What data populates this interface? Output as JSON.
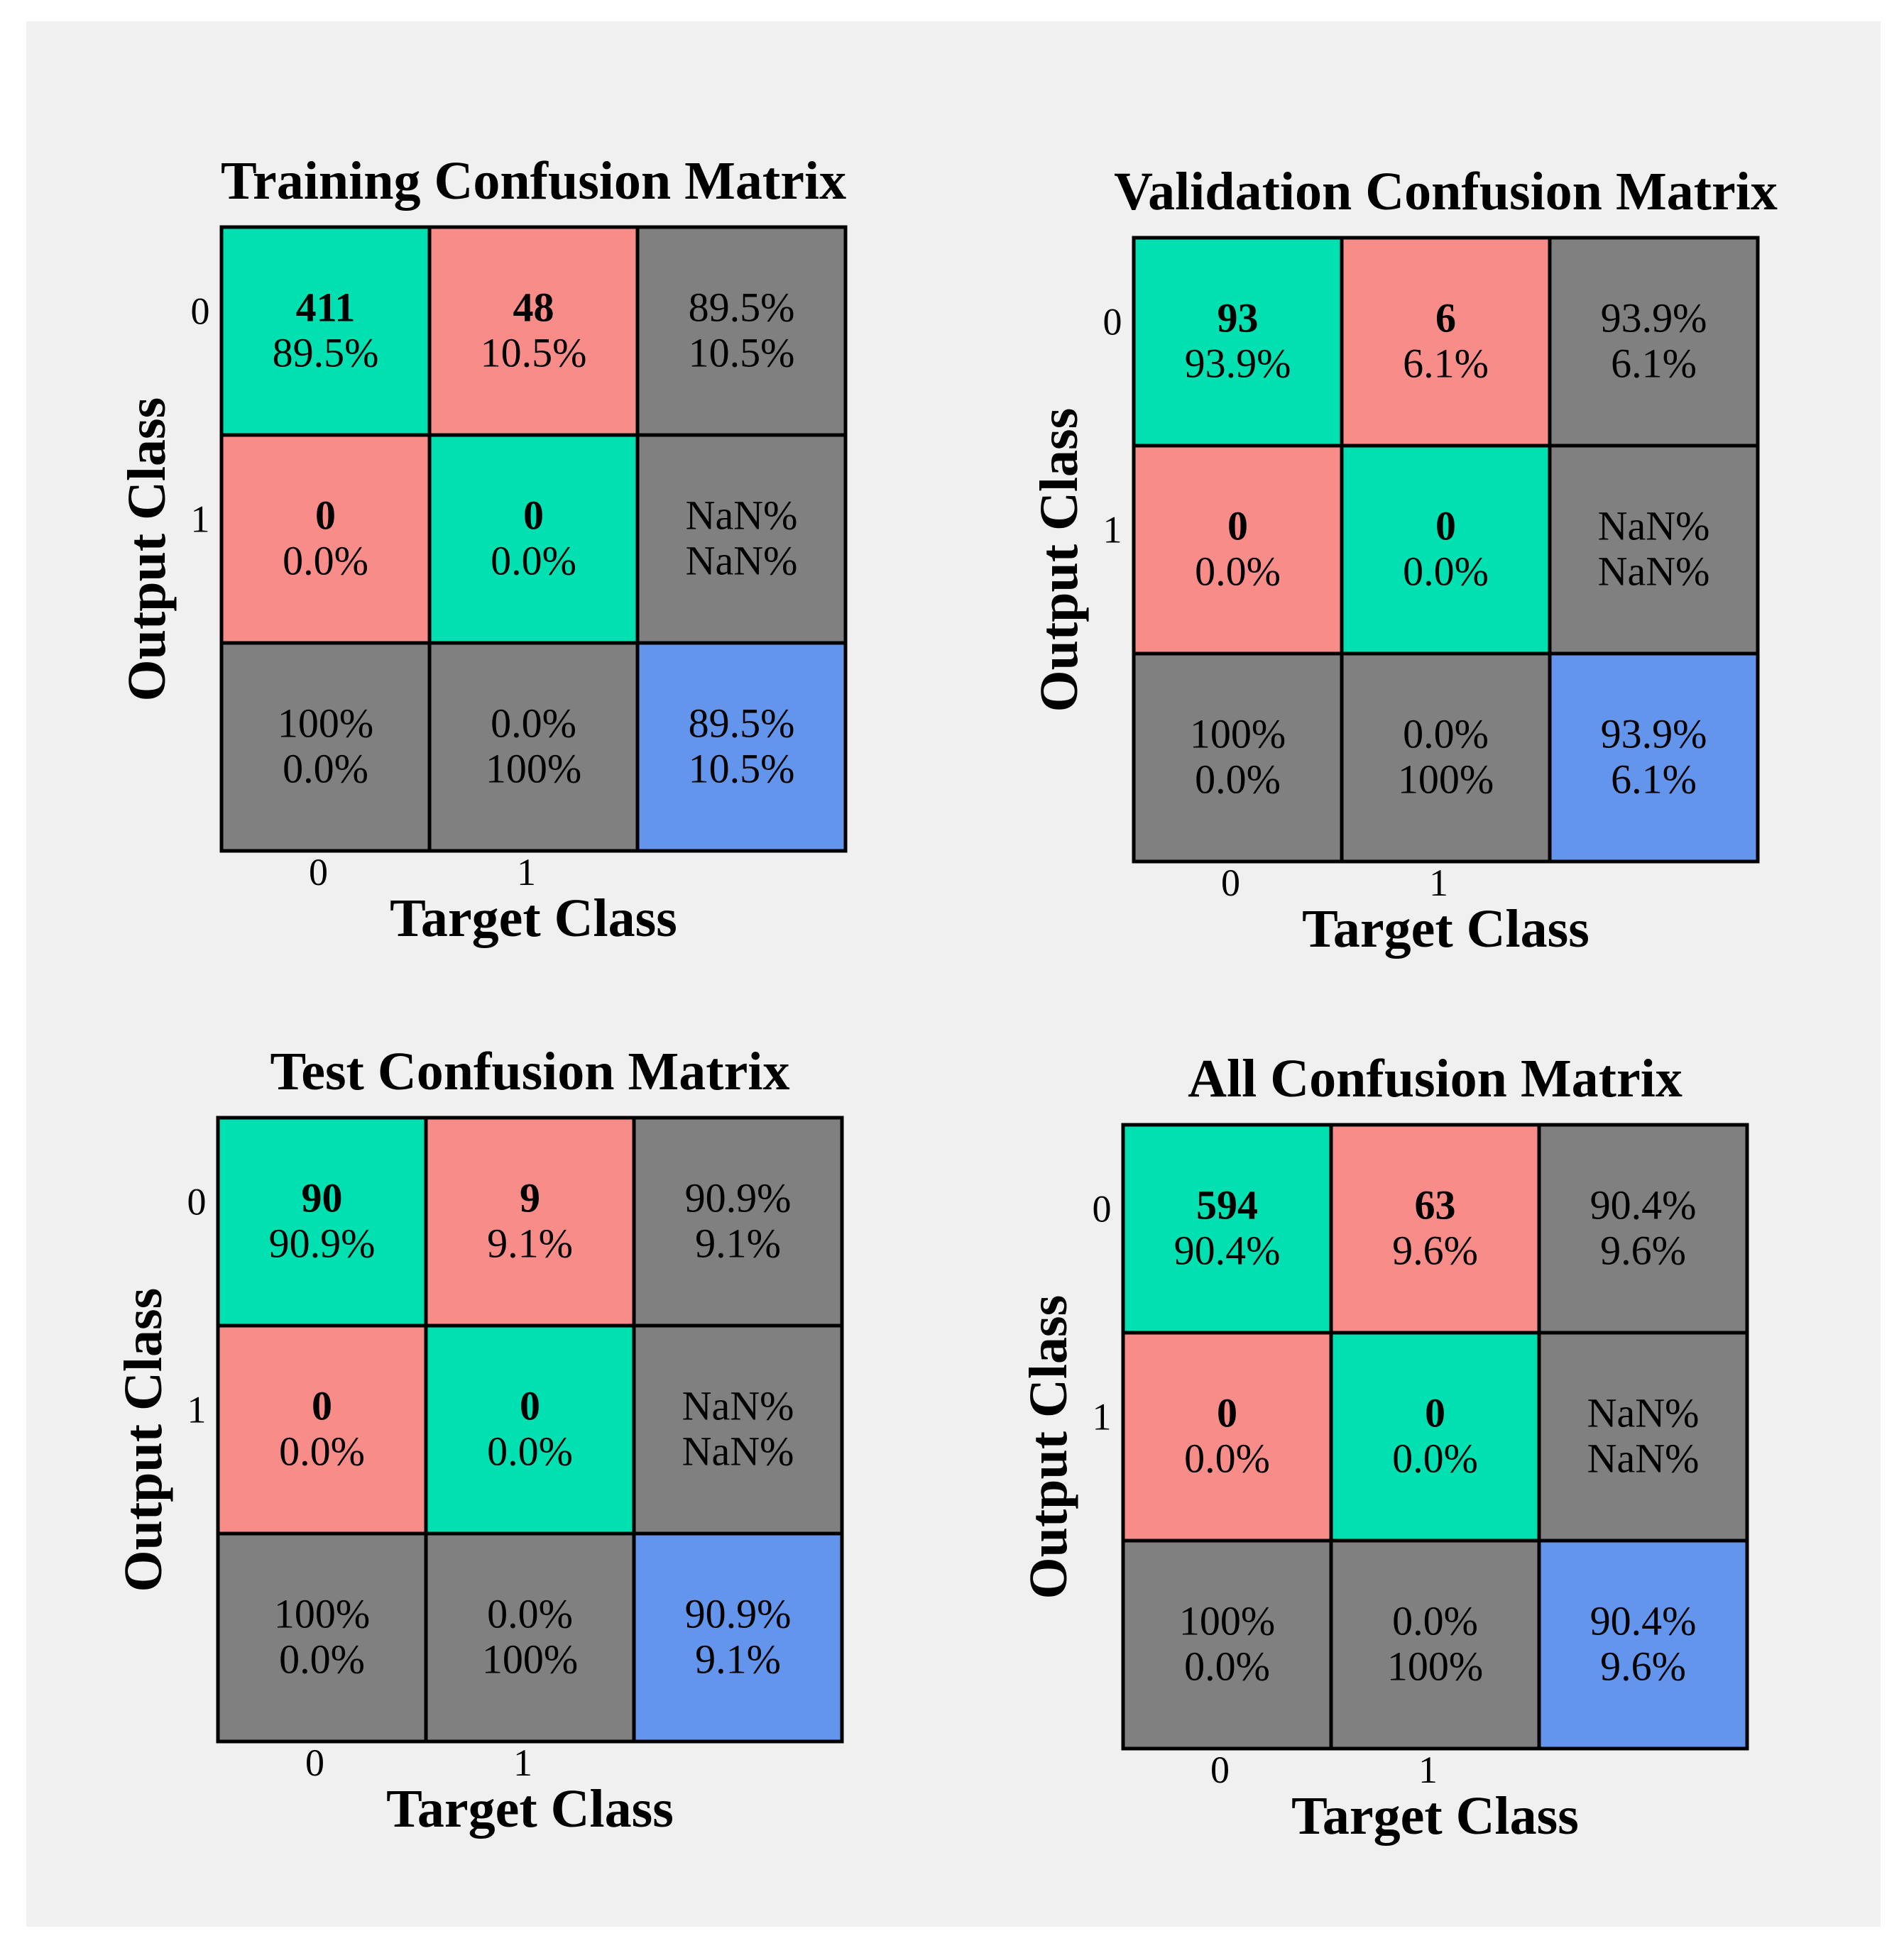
{
  "colors": {
    "correct": "#00E0B0",
    "incorrect": "#F88C88",
    "summary": "#808080",
    "overall": "#6495ED",
    "grid": "#000000",
    "background": "#f0f0f0"
  },
  "chart_data": [
    {
      "type": "table",
      "title": "Training Confusion Matrix",
      "xlabel": "Target Class",
      "ylabel": "Output Class",
      "x_ticks": [
        "0",
        "1"
      ],
      "y_ticks": [
        "0",
        "1"
      ],
      "cells": [
        [
          {
            "kind": "correct",
            "count": "411",
            "pct": "89.5%"
          },
          {
            "kind": "incorrect",
            "count": "48",
            "pct": "10.5%"
          },
          {
            "kind": "summary",
            "top": "89.5%",
            "bottom": "10.5%"
          }
        ],
        [
          {
            "kind": "incorrect",
            "count": "0",
            "pct": "0.0%"
          },
          {
            "kind": "correct",
            "count": "0",
            "pct": "0.0%"
          },
          {
            "kind": "summary",
            "top": "NaN%",
            "bottom": "NaN%"
          }
        ],
        [
          {
            "kind": "summary",
            "top": "100%",
            "bottom": "0.0%"
          },
          {
            "kind": "summary",
            "top": "0.0%",
            "bottom": "100%"
          },
          {
            "kind": "overall",
            "top": "89.5%",
            "bottom": "10.5%"
          }
        ]
      ]
    },
    {
      "type": "table",
      "title": "Validation Confusion Matrix",
      "xlabel": "Target Class",
      "ylabel": "Output Class",
      "x_ticks": [
        "0",
        "1"
      ],
      "y_ticks": [
        "0",
        "1"
      ],
      "cells": [
        [
          {
            "kind": "correct",
            "count": "93",
            "pct": "93.9%"
          },
          {
            "kind": "incorrect",
            "count": "6",
            "pct": "6.1%"
          },
          {
            "kind": "summary",
            "top": "93.9%",
            "bottom": "6.1%"
          }
        ],
        [
          {
            "kind": "incorrect",
            "count": "0",
            "pct": "0.0%"
          },
          {
            "kind": "correct",
            "count": "0",
            "pct": "0.0%"
          },
          {
            "kind": "summary",
            "top": "NaN%",
            "bottom": "NaN%"
          }
        ],
        [
          {
            "kind": "summary",
            "top": "100%",
            "bottom": "0.0%"
          },
          {
            "kind": "summary",
            "top": "0.0%",
            "bottom": "100%"
          },
          {
            "kind": "overall",
            "top": "93.9%",
            "bottom": "6.1%"
          }
        ]
      ]
    },
    {
      "type": "table",
      "title": "Test Confusion Matrix",
      "xlabel": "Target Class",
      "ylabel": "Output Class",
      "x_ticks": [
        "0",
        "1"
      ],
      "y_ticks": [
        "0",
        "1"
      ],
      "cells": [
        [
          {
            "kind": "correct",
            "count": "90",
            "pct": "90.9%"
          },
          {
            "kind": "incorrect",
            "count": "9",
            "pct": "9.1%"
          },
          {
            "kind": "summary",
            "top": "90.9%",
            "bottom": "9.1%"
          }
        ],
        [
          {
            "kind": "incorrect",
            "count": "0",
            "pct": "0.0%"
          },
          {
            "kind": "correct",
            "count": "0",
            "pct": "0.0%"
          },
          {
            "kind": "summary",
            "top": "NaN%",
            "bottom": "NaN%"
          }
        ],
        [
          {
            "kind": "summary",
            "top": "100%",
            "bottom": "0.0%"
          },
          {
            "kind": "summary",
            "top": "0.0%",
            "bottom": "100%"
          },
          {
            "kind": "overall",
            "top": "90.9%",
            "bottom": "9.1%"
          }
        ]
      ]
    },
    {
      "type": "table",
      "title": "All Confusion Matrix",
      "xlabel": "Target Class",
      "ylabel": "Output Class",
      "x_ticks": [
        "0",
        "1"
      ],
      "y_ticks": [
        "0",
        "1"
      ],
      "cells": [
        [
          {
            "kind": "correct",
            "count": "594",
            "pct": "90.4%"
          },
          {
            "kind": "incorrect",
            "count": "63",
            "pct": "9.6%"
          },
          {
            "kind": "summary",
            "top": "90.4%",
            "bottom": "9.6%"
          }
        ],
        [
          {
            "kind": "incorrect",
            "count": "0",
            "pct": "0.0%"
          },
          {
            "kind": "correct",
            "count": "0",
            "pct": "0.0%"
          },
          {
            "kind": "summary",
            "top": "NaN%",
            "bottom": "NaN%"
          }
        ],
        [
          {
            "kind": "summary",
            "top": "100%",
            "bottom": "0.0%"
          },
          {
            "kind": "summary",
            "top": "0.0%",
            "bottom": "100%"
          },
          {
            "kind": "overall",
            "top": "90.4%",
            "bottom": "9.6%"
          }
        ]
      ]
    }
  ]
}
